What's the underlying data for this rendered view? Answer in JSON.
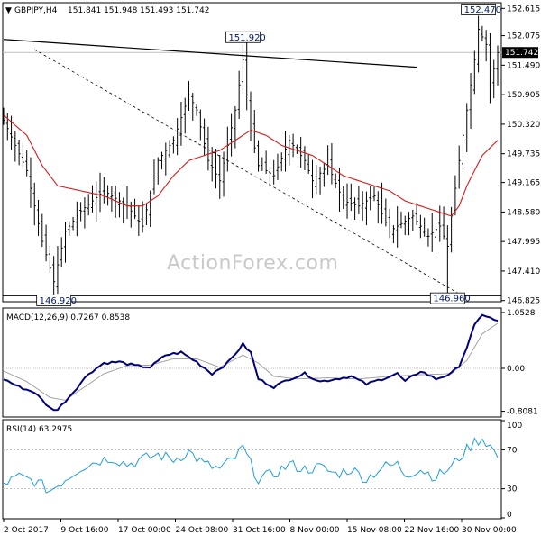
{
  "header": {
    "symbol": "GBPJPY,H4",
    "ohlc": "151.841 151.948 151.493 151.742"
  },
  "watermark": "ActionForex.com",
  "chart_data": [
    {
      "type": "candlestick",
      "title": "GBPJPY,H4 151.841 151.948 151.493 151.742",
      "ylim": [
        146.82,
        152.71
      ],
      "y_ticks": [
        "152.615",
        "152.075",
        "151.490",
        "150.905",
        "150.320",
        "149.735",
        "149.165",
        "148.580",
        "147.995",
        "147.410",
        "146.825"
      ],
      "current_price_label": "151.742",
      "x_ticks": [
        "2 Oct 2017",
        "9 Oct 16:00",
        "17 Oct 00:00",
        "24 Oct 08:00",
        "31 Oct 16:00",
        "8 Nov 00:00",
        "15 Nov 08:00",
        "22 Nov 16:00",
        "30 Nov 00:00"
      ],
      "annotations": [
        {
          "text": "146.920",
          "value": 146.92,
          "bar": 13
        },
        {
          "text": "151.920",
          "value": 151.92,
          "bar": 62
        },
        {
          "text": "146.960",
          "value": 146.96,
          "bar": 115
        },
        {
          "text": "152.470",
          "value": 152.47,
          "bar": 123
        }
      ],
      "price_path": [
        [
          0,
          150.4
        ],
        [
          6,
          149.4
        ],
        [
          10,
          148.0
        ],
        [
          13,
          147.2
        ],
        [
          16,
          148.2
        ],
        [
          20,
          148.6
        ],
        [
          26,
          149.0
        ],
        [
          32,
          148.7
        ],
        [
          36,
          148.3
        ],
        [
          40,
          149.6
        ],
        [
          44,
          150.0
        ],
        [
          48,
          150.9
        ],
        [
          50,
          150.6
        ],
        [
          53,
          149.6
        ],
        [
          56,
          149.2
        ],
        [
          60,
          150.6
        ],
        [
          62,
          151.6
        ],
        [
          64,
          150.2
        ],
        [
          66,
          149.5
        ],
        [
          70,
          149.3
        ],
        [
          74,
          150.0
        ],
        [
          78,
          149.6
        ],
        [
          80,
          149.2
        ],
        [
          84,
          149.5
        ],
        [
          88,
          148.8
        ],
        [
          92,
          148.7
        ],
        [
          96,
          148.9
        ],
        [
          100,
          148.2
        ],
        [
          104,
          148.4
        ],
        [
          106,
          148.5
        ],
        [
          110,
          148.1
        ],
        [
          113,
          148.3
        ],
        [
          115,
          147.9
        ],
        [
          116,
          148.5
        ],
        [
          118,
          149.6
        ],
        [
          120,
          150.6
        ],
        [
          122,
          151.6
        ],
        [
          123,
          152.2
        ],
        [
          125,
          151.9
        ],
        [
          126,
          151.1
        ],
        [
          128,
          151.742
        ]
      ],
      "ma_path": [
        [
          0,
          150.5
        ],
        [
          6,
          150.1
        ],
        [
          10,
          149.5
        ],
        [
          14,
          149.1
        ],
        [
          20,
          149.0
        ],
        [
          26,
          148.9
        ],
        [
          32,
          148.7
        ],
        [
          36,
          148.7
        ],
        [
          40,
          148.9
        ],
        [
          44,
          149.3
        ],
        [
          48,
          149.6
        ],
        [
          52,
          149.7
        ],
        [
          56,
          149.8
        ],
        [
          60,
          150.0
        ],
        [
          64,
          150.2
        ],
        [
          68,
          150.1
        ],
        [
          72,
          149.9
        ],
        [
          76,
          149.8
        ],
        [
          80,
          149.7
        ],
        [
          84,
          149.5
        ],
        [
          88,
          149.3
        ],
        [
          92,
          149.2
        ],
        [
          96,
          149.1
        ],
        [
          100,
          149.0
        ],
        [
          104,
          148.8
        ],
        [
          108,
          148.7
        ],
        [
          112,
          148.6
        ],
        [
          116,
          148.5
        ],
        [
          118,
          148.7
        ],
        [
          120,
          149.1
        ],
        [
          122,
          149.4
        ],
        [
          124,
          149.7
        ],
        [
          128,
          150.0
        ]
      ],
      "trendlines": [
        {
          "style": "solid",
          "from": [
            0,
            152.0
          ],
          "to": [
            107,
            151.45
          ]
        },
        {
          "style": "dashed",
          "from": [
            8,
            151.8
          ],
          "to": [
            118,
            146.96
          ]
        }
      ],
      "horizontal_lines": [
        146.92
      ]
    },
    {
      "type": "line",
      "title": "MACD(12,26,9) 0.7267 0.8538",
      "ylim": [
        -0.9,
        1.12
      ],
      "y_ticks": [
        "1.0528",
        "0.00",
        "-0.8081"
      ],
      "zero_line": true,
      "macd_path": [
        [
          0,
          -0.2
        ],
        [
          4,
          -0.35
        ],
        [
          8,
          -0.45
        ],
        [
          12,
          -0.75
        ],
        [
          14,
          -0.78
        ],
        [
          18,
          -0.45
        ],
        [
          22,
          -0.1
        ],
        [
          26,
          0.1
        ],
        [
          30,
          0.12
        ],
        [
          34,
          0.05
        ],
        [
          38,
          0.02
        ],
        [
          42,
          0.25
        ],
        [
          46,
          0.3
        ],
        [
          50,
          0.12
        ],
        [
          54,
          -0.1
        ],
        [
          58,
          0.1
        ],
        [
          62,
          0.45
        ],
        [
          64,
          0.3
        ],
        [
          66,
          -0.2
        ],
        [
          70,
          -0.35
        ],
        [
          74,
          -0.2
        ],
        [
          78,
          -0.1
        ],
        [
          82,
          -0.25
        ],
        [
          86,
          -0.2
        ],
        [
          90,
          -0.15
        ],
        [
          94,
          -0.3
        ],
        [
          98,
          -0.2
        ],
        [
          102,
          -0.1
        ],
        [
          104,
          -0.25
        ],
        [
          108,
          -0.05
        ],
        [
          112,
          -0.2
        ],
        [
          116,
          -0.1
        ],
        [
          118,
          0.05
        ],
        [
          120,
          0.4
        ],
        [
          122,
          0.8
        ],
        [
          124,
          1.02
        ],
        [
          126,
          0.95
        ],
        [
          128,
          0.88
        ]
      ],
      "signal_path": [
        [
          0,
          -0.05
        ],
        [
          6,
          -0.25
        ],
        [
          12,
          -0.55
        ],
        [
          16,
          -0.6
        ],
        [
          20,
          -0.4
        ],
        [
          26,
          -0.1
        ],
        [
          32,
          0.05
        ],
        [
          38,
          0.06
        ],
        [
          44,
          0.18
        ],
        [
          50,
          0.18
        ],
        [
          56,
          0.02
        ],
        [
          62,
          0.25
        ],
        [
          66,
          0.1
        ],
        [
          70,
          -0.15
        ],
        [
          76,
          -0.2
        ],
        [
          84,
          -0.18
        ],
        [
          92,
          -0.2
        ],
        [
          100,
          -0.15
        ],
        [
          108,
          -0.12
        ],
        [
          116,
          -0.1
        ],
        [
          120,
          0.15
        ],
        [
          124,
          0.65
        ],
        [
          128,
          0.85
        ]
      ]
    },
    {
      "type": "line",
      "title": "RSI(14) 63.2975",
      "ylim": [
        0,
        100
      ],
      "y_ticks": [
        "100",
        "70",
        "30",
        "0"
      ],
      "levels": [
        70,
        30
      ],
      "rsi_path": [
        [
          0,
          35
        ],
        [
          4,
          42
        ],
        [
          8,
          38
        ],
        [
          12,
          28
        ],
        [
          16,
          40
        ],
        [
          20,
          52
        ],
        [
          24,
          58
        ],
        [
          28,
          62
        ],
        [
          32,
          55
        ],
        [
          36,
          60
        ],
        [
          40,
          65
        ],
        [
          44,
          60
        ],
        [
          48,
          68
        ],
        [
          52,
          55
        ],
        [
          56,
          50
        ],
        [
          60,
          62
        ],
        [
          62,
          72
        ],
        [
          64,
          55
        ],
        [
          66,
          40
        ],
        [
          70,
          45
        ],
        [
          74,
          55
        ],
        [
          78,
          50
        ],
        [
          82,
          52
        ],
        [
          86,
          45
        ],
        [
          90,
          50
        ],
        [
          94,
          40
        ],
        [
          98,
          52
        ],
        [
          102,
          55
        ],
        [
          104,
          45
        ],
        [
          108,
          50
        ],
        [
          112,
          42
        ],
        [
          116,
          52
        ],
        [
          118,
          62
        ],
        [
          120,
          70
        ],
        [
          122,
          78
        ],
        [
          124,
          82
        ],
        [
          126,
          74
        ],
        [
          128,
          63
        ]
      ]
    }
  ]
}
